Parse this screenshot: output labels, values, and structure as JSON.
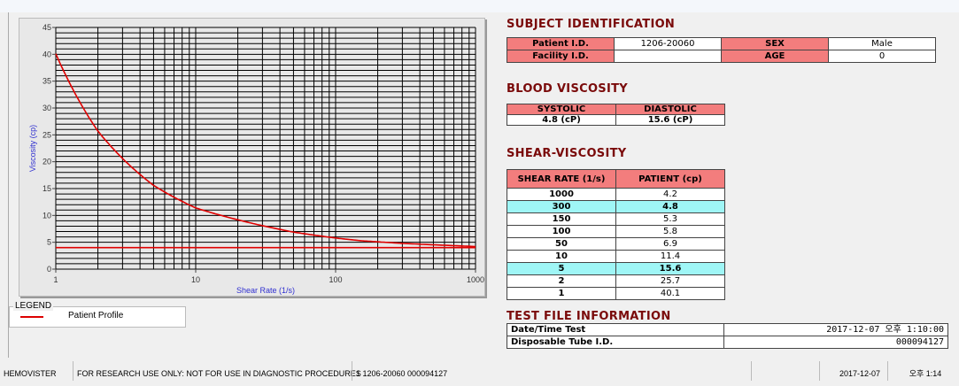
{
  "chart_data": {
    "type": "line",
    "xlabel": "Shear Rate (1/s)",
    "ylabel": "Viscosity (cp)",
    "x_scale": "log",
    "xlim": [
      1,
      1000
    ],
    "ylim": [
      0,
      45
    ],
    "xticks": [
      "1",
      "10",
      "100",
      "1000"
    ],
    "yticks": [
      "0",
      "5",
      "10",
      "15",
      "20",
      "25",
      "30",
      "35",
      "40",
      "45"
    ],
    "grid": true,
    "series": [
      {
        "name": "Patient Profile",
        "color": "#e00000",
        "x": [
          1,
          2,
          5,
          10,
          50,
          100,
          150,
          300,
          1000
        ],
        "y": [
          40.1,
          25.7,
          15.6,
          11.4,
          6.9,
          5.8,
          5.3,
          4.8,
          4.2
        ]
      }
    ],
    "reference_line": {
      "y": 4.0,
      "color": "#e00000"
    },
    "legend": {
      "title": "LEGEND",
      "placement": "bottom-left"
    }
  },
  "subject": {
    "title": "SUBJECT IDENTIFICATION",
    "patient_id_label": "Patient I.D.",
    "patient_id": "1206-20060",
    "sex_label": "SEX",
    "sex": "Male",
    "facility_label": "Facility I.D.",
    "facility": "",
    "age_label": "AGE",
    "age": "0"
  },
  "blood": {
    "title": "BLOOD VISCOSITY",
    "systolic_label": "SYSTOLIC",
    "diastolic_label": "DIASTOLIC",
    "systolic": "4.8 (cP)",
    "diastolic": "15.6 (cP)"
  },
  "shear": {
    "title": "SHEAR-VISCOSITY",
    "col1": "SHEAR RATE (1/s)",
    "col2": "PATIENT (cp)",
    "rows": [
      [
        "1000",
        "4.2",
        false
      ],
      [
        "300",
        "4.8",
        true
      ],
      [
        "150",
        "5.3",
        false
      ],
      [
        "100",
        "5.8",
        false
      ],
      [
        "50",
        "6.9",
        false
      ],
      [
        "10",
        "11.4",
        false
      ],
      [
        "5",
        "15.6",
        true
      ],
      [
        "2",
        "25.7",
        false
      ],
      [
        "1",
        "40.1",
        false
      ]
    ]
  },
  "testfile": {
    "title": "TEST FILE INFORMATION",
    "date_label": "Date/Time Test",
    "date": "2017-12-07  오후 1:10:00",
    "tube_label": "Disposable Tube I.D.",
    "tube": "000094127"
  },
  "status": {
    "app": "HEMOVISTER",
    "notice": "FOR RESEARCH USE ONLY: NOT FOR USE IN DIAGNOSTIC PROCEDURES",
    "record": "1  1206-20060  000094127",
    "blank": "",
    "date": "2017-12-07",
    "time": "오후 1:14"
  }
}
